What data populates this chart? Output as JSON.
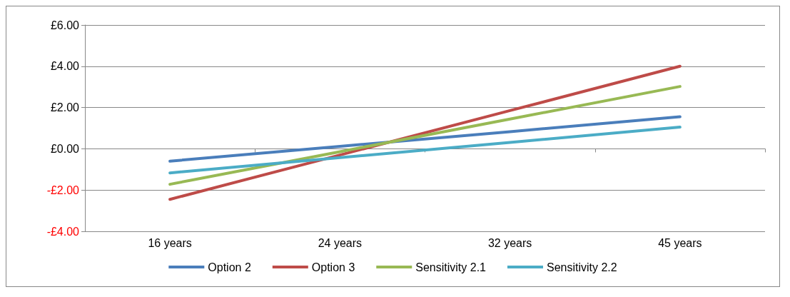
{
  "chart_data": {
    "type": "line",
    "categories": [
      "16 years",
      "24 years",
      "32 years",
      "45 years"
    ],
    "series": [
      {
        "name": "Option 2",
        "color": "#4a7ebb",
        "values": [
          -0.6,
          0.12,
          0.83,
          1.55
        ]
      },
      {
        "name": "Option 3",
        "color": "#be4b48",
        "values": [
          -2.45,
          -0.3,
          1.85,
          4.0
        ]
      },
      {
        "name": "Sensitivity 2.1",
        "color": "#98b954",
        "values": [
          -1.72,
          -0.14,
          1.44,
          3.02
        ]
      },
      {
        "name": "Sensitivity 2.2",
        "color": "#4bacc6",
        "values": [
          -1.17,
          -0.43,
          0.31,
          1.05
        ]
      }
    ],
    "ylim": [
      -4,
      6
    ],
    "yticks": [
      {
        "value": -4,
        "label": "-£4.00"
      },
      {
        "value": -2,
        "label": "-£2.00"
      },
      {
        "value": 0,
        "label": "£0.00"
      },
      {
        "value": 2,
        "label": "£2.00"
      },
      {
        "value": 4,
        "label": "£4.00"
      },
      {
        "value": 6,
        "label": "£6.00"
      }
    ],
    "grid": "y",
    "legend": "bottom",
    "marker": "none",
    "line_style": "solid"
  }
}
